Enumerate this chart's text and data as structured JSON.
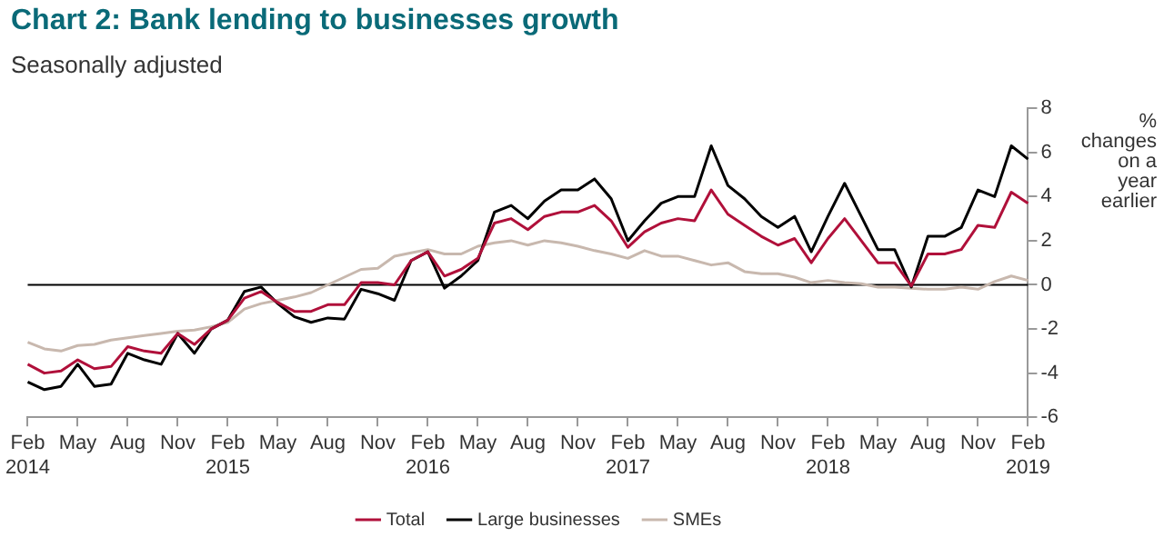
{
  "chart_data": {
    "type": "line",
    "title": "Chart 2: Bank lending to businesses growth",
    "subtitle": "Seasonally adjusted",
    "ylabel": "% changes on a year earlier",
    "categories": [
      "Feb 2014",
      null,
      null,
      "May",
      null,
      null,
      "Aug",
      null,
      null,
      "Nov",
      null,
      null,
      "Feb 2015",
      null,
      null,
      "May",
      null,
      null,
      "Aug",
      null,
      null,
      "Nov",
      null,
      null,
      "Feb 2016",
      null,
      null,
      "May",
      null,
      null,
      "Aug",
      null,
      null,
      "Nov",
      null,
      null,
      "Feb 2017",
      null,
      null,
      "May",
      null,
      null,
      "Aug",
      null,
      null,
      "Nov",
      null,
      null,
      "Feb 2018",
      null,
      null,
      "May",
      null,
      null,
      "Aug",
      null,
      null,
      "Nov",
      null,
      null,
      "Feb 2019"
    ],
    "series": [
      {
        "name": "Total",
        "color": "#b0103a",
        "values": [
          -3.6,
          -4.0,
          -3.9,
          -3.4,
          -3.8,
          -3.7,
          -2.8,
          -3.0,
          -3.1,
          -2.2,
          -2.7,
          -2.0,
          -1.6,
          -0.6,
          -0.3,
          -0.8,
          -1.2,
          -1.2,
          -0.9,
          -0.9,
          0.1,
          0.1,
          0.0,
          1.1,
          1.5,
          0.4,
          0.7,
          1.2,
          2.8,
          3.0,
          2.5,
          3.1,
          3.3,
          3.3,
          3.6,
          2.9,
          1.7,
          2.4,
          2.8,
          3.0,
          2.9,
          4.3,
          3.2,
          2.7,
          2.2,
          1.8,
          2.1,
          1.0,
          2.1,
          3.0,
          2.0,
          1.0,
          1.0,
          -0.05,
          1.4,
          1.4,
          1.6,
          2.7,
          2.6,
          4.2,
          3.7
        ]
      },
      {
        "name": "Large businesses",
        "color": "#000000",
        "values": [
          -4.4,
          -4.75,
          -4.6,
          -3.6,
          -4.6,
          -4.5,
          -3.1,
          -3.4,
          -3.6,
          -2.2,
          -3.1,
          -2.0,
          -1.6,
          -0.3,
          -0.1,
          -0.85,
          -1.45,
          -1.7,
          -1.5,
          -1.55,
          -0.2,
          -0.4,
          -0.7,
          1.1,
          1.5,
          -0.15,
          0.4,
          1.1,
          3.3,
          3.6,
          3.0,
          3.8,
          4.3,
          4.3,
          4.8,
          3.9,
          2.0,
          2.9,
          3.7,
          4.0,
          4.0,
          6.3,
          4.5,
          3.9,
          3.1,
          2.6,
          3.1,
          1.5,
          3.1,
          4.6,
          3.1,
          1.6,
          1.6,
          -0.1,
          2.2,
          2.2,
          2.6,
          4.3,
          4.0,
          6.3,
          5.7
        ]
      },
      {
        "name": "SMEs",
        "color": "#c8b8ae",
        "values": [
          -2.6,
          -2.9,
          -3.0,
          -2.75,
          -2.7,
          -2.5,
          -2.4,
          -2.3,
          -2.2,
          -2.1,
          -2.05,
          -1.9,
          -1.7,
          -1.1,
          -0.85,
          -0.7,
          -0.55,
          -0.35,
          0.0,
          0.35,
          0.7,
          0.75,
          1.3,
          1.45,
          1.6,
          1.4,
          1.4,
          1.75,
          1.9,
          2.0,
          1.8,
          2.0,
          1.9,
          1.75,
          1.55,
          1.4,
          1.2,
          1.55,
          1.3,
          1.3,
          1.1,
          0.9,
          1.0,
          0.6,
          0.5,
          0.5,
          0.35,
          0.1,
          0.2,
          0.1,
          0.05,
          -0.1,
          -0.1,
          -0.15,
          -0.2,
          -0.2,
          -0.1,
          -0.2,
          0.15,
          0.4,
          0.2
        ]
      }
    ],
    "ylim": [
      -6,
      8
    ],
    "yticks": [
      -6,
      -4,
      -2,
      0,
      2,
      4,
      6,
      8
    ],
    "ref_lines": [
      {
        "axis": "y",
        "value": 0,
        "color": "#000000"
      }
    ],
    "legend": "bottom",
    "grid": false,
    "marker": "none",
    "line_style": "solid"
  }
}
